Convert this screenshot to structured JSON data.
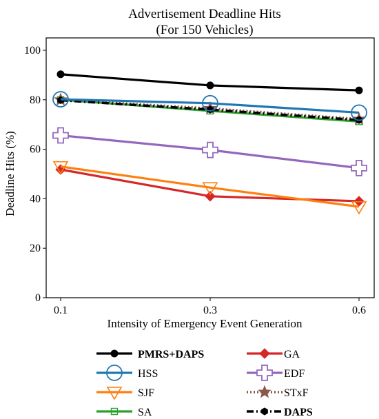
{
  "chart_data": {
    "type": "line",
    "title": "Advertisement Deadline Hits",
    "subtitle": "(For 150 Vehicles)",
    "xlabel": "Intensity of Emergency Event Generation",
    "ylabel": "Deadline Hits (%)",
    "categories": [
      "0.1",
      "0.3",
      "0.6"
    ],
    "ylim": [
      0,
      105
    ],
    "yticks": [
      0,
      20,
      40,
      60,
      80,
      100
    ],
    "grid": false,
    "legend_position": "bottom",
    "series": [
      {
        "name": "PMRS+DAPS",
        "values": [
          90.3,
          85.8,
          83.8
        ],
        "color": "#000000",
        "marker": "filled-circle",
        "line": "solid",
        "bold": true
      },
      {
        "name": "HSS",
        "values": [
          80.2,
          78.6,
          74.8
        ],
        "color": "#1f77b4",
        "marker": "open-circle-large",
        "line": "solid",
        "bold": false
      },
      {
        "name": "SJF",
        "values": [
          53.0,
          44.5,
          36.8
        ],
        "color": "#ff7f0e",
        "marker": "open-triangle-down",
        "line": "solid",
        "bold": false
      },
      {
        "name": "SA",
        "values": [
          80.0,
          75.5,
          71.2
        ],
        "color": "#2ca02c",
        "marker": "open-square-small",
        "line": "solid",
        "bold": false
      },
      {
        "name": "GA",
        "values": [
          51.8,
          41.0,
          39.0
        ],
        "color": "#d62728",
        "marker": "filled-diamond",
        "line": "solid",
        "bold": false
      },
      {
        "name": "EDF",
        "values": [
          65.6,
          59.7,
          52.4
        ],
        "color": "#9467bd",
        "marker": "open-plus",
        "line": "solid",
        "bold": false
      },
      {
        "name": "STxF",
        "values": [
          80.0,
          76.5,
          72.2
        ],
        "color": "#8c564b",
        "marker": "filled-star",
        "line": "dotted",
        "bold": false
      },
      {
        "name": "DAPS",
        "values": [
          79.8,
          76.0,
          71.8
        ],
        "color": "#000000",
        "marker": "filled-hexagon",
        "line": "dashdot",
        "bold": true
      }
    ]
  }
}
